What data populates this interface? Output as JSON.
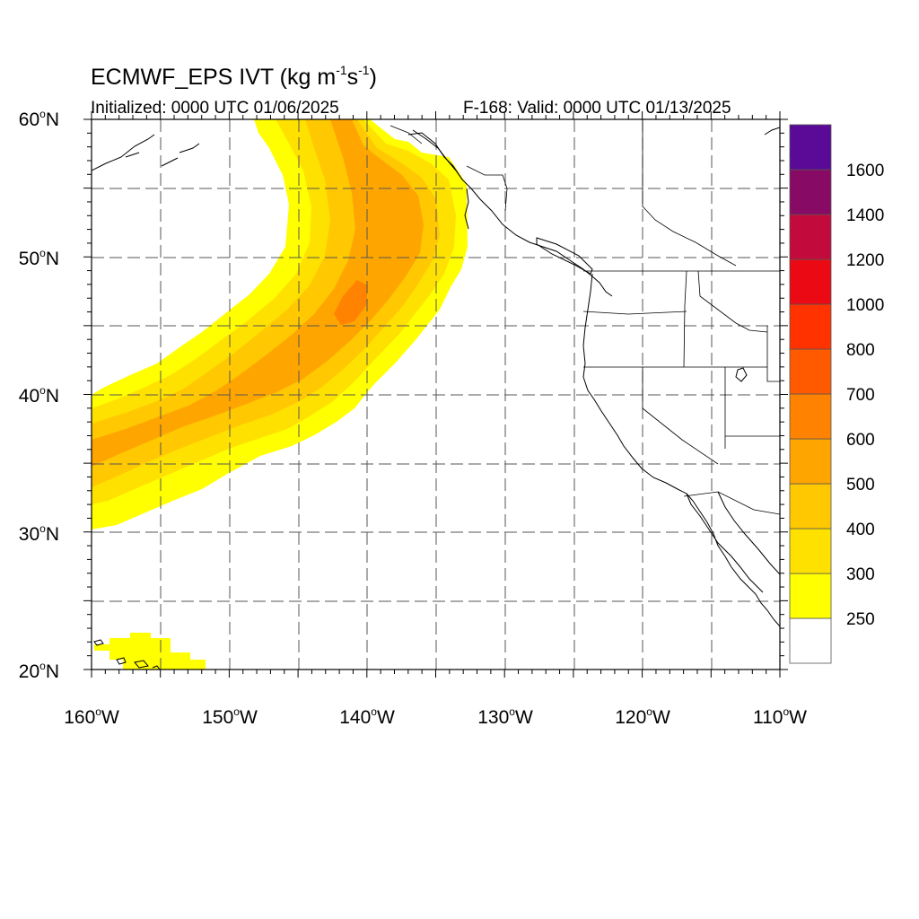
{
  "header": {
    "title_main": "ECMWF_EPS IVT (kg m",
    "title_exp1": "-1",
    "title_mid": "s",
    "title_exp2": "-1",
    "title_end": ")",
    "initialized": "Initialized: 0000 UTC 01/06/2025",
    "valid": "F-168: Valid: 0000 UTC 01/13/2025"
  },
  "axes": {
    "lat_labels": [
      {
        "value": "60",
        "deg": "o",
        "hemi": "N"
      },
      {
        "value": "50",
        "deg": "o",
        "hemi": "N"
      },
      {
        "value": "40",
        "deg": "o",
        "hemi": "N"
      },
      {
        "value": "30",
        "deg": "o",
        "hemi": "N"
      },
      {
        "value": "20",
        "deg": "o",
        "hemi": "N"
      }
    ],
    "lon_labels": [
      {
        "value": "160",
        "deg": "o",
        "hemi": "W"
      },
      {
        "value": "150",
        "deg": "o",
        "hemi": "W"
      },
      {
        "value": "140",
        "deg": "o",
        "hemi": "W"
      },
      {
        "value": "130",
        "deg": "o",
        "hemi": "W"
      },
      {
        "value": "120",
        "deg": "o",
        "hemi": "W"
      },
      {
        "value": "110",
        "deg": "o",
        "hemi": "W"
      }
    ],
    "lat_range": [
      20,
      60
    ],
    "lon_range": [
      -160,
      -110
    ],
    "gridlines": "dashed every 5 degrees"
  },
  "colorbar": {
    "labels": [
      "250",
      "300",
      "400",
      "500",
      "600",
      "700",
      "800",
      "1000",
      "1200",
      "1400",
      "1600"
    ],
    "colors": [
      "#ffffff",
      "#ffff00",
      "#ffe100",
      "#ffc800",
      "#ffa500",
      "#ff8200",
      "#ff5a00",
      "#ff3200",
      "#eb0a14",
      "#c30a3c",
      "#870a64",
      "#5a0a96"
    ]
  },
  "map": {
    "land_color": "#ffffff",
    "outline_color": "#000000",
    "ar_colors": {
      "c250": "#ffff00",
      "c300": "#ffe100",
      "c400": "#ffc800",
      "c500": "#ffa500",
      "c600": "#ff8200"
    }
  }
}
